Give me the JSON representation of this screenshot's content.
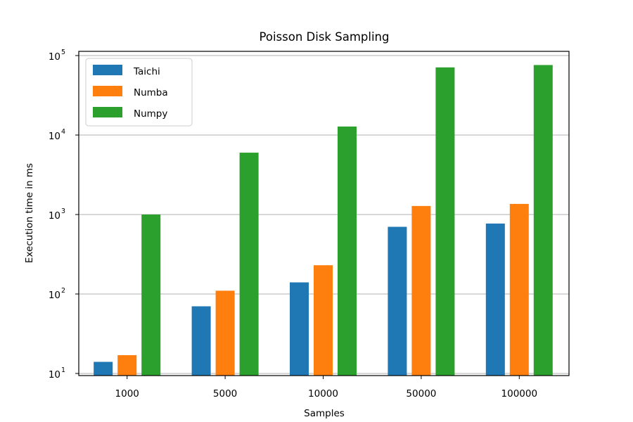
{
  "chart_data": {
    "type": "bar",
    "title": "Poisson Disk Sampling",
    "xlabel": "Samples",
    "ylabel": "Execution time in ms",
    "yscale": "log",
    "ylim": [
      10,
      100000
    ],
    "y_ticks": [
      {
        "base": "10",
        "exp": "1",
        "value": 10
      },
      {
        "base": "10",
        "exp": "2",
        "value": 100
      },
      {
        "base": "10",
        "exp": "3",
        "value": 1000
      },
      {
        "base": "10",
        "exp": "4",
        "value": 10000
      },
      {
        "base": "10",
        "exp": "5",
        "value": 100000
      }
    ],
    "grid": "y-major",
    "legend_position": "top-left",
    "categories": [
      "1000",
      "5000",
      "10000",
      "50000",
      "100000"
    ],
    "series": [
      {
        "name": "Taichi",
        "color": "#1f77b4",
        "values": [
          14,
          70,
          140,
          700,
          770
        ]
      },
      {
        "name": "Numba",
        "color": "#ff7f0e",
        "values": [
          17,
          110,
          230,
          1280,
          1360
        ]
      },
      {
        "name": "Numpy",
        "color": "#2ca02c",
        "values": [
          1000,
          6000,
          12800,
          71000,
          76000
        ]
      }
    ]
  }
}
